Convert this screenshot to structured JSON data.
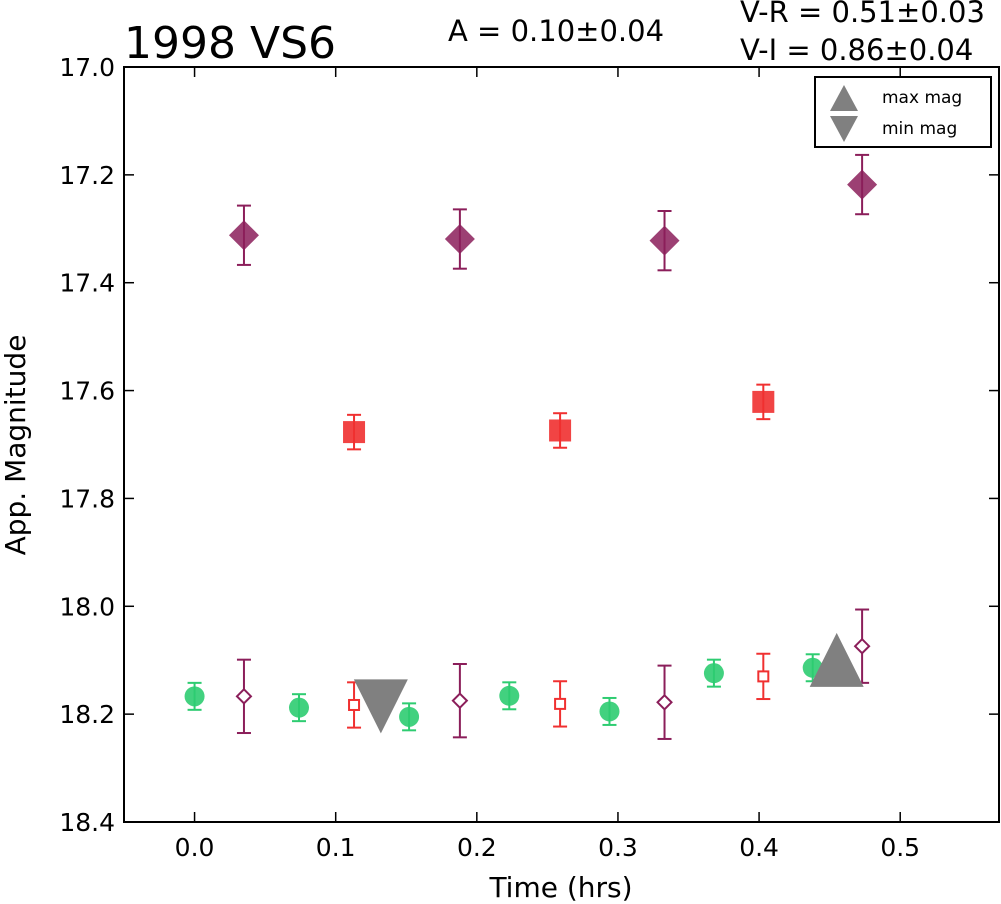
{
  "header": {
    "title": "1998 VS6",
    "amplitude": "A  = 0.10±0.04",
    "vr": "V-R = 0.51±0.03",
    "vi": "V-I  = 0.86±0.04"
  },
  "legend": {
    "max_label": "max mag",
    "min_label": "min mag"
  },
  "chart_data": {
    "type": "scatter",
    "xlabel": "Time (hrs)",
    "ylabel": "App. Magnitude",
    "xlim": [
      -0.05,
      0.57
    ],
    "ylim": [
      18.4,
      17.0
    ],
    "y_inverted": true,
    "xticks": [
      "0.0",
      "0.1",
      "0.2",
      "0.3",
      "0.4",
      "0.5"
    ],
    "yticks": [
      "17.0",
      "17.2",
      "17.4",
      "17.6",
      "17.8",
      "18.0",
      "18.2",
      "18.4"
    ],
    "grid": false,
    "legend_position": "top-right",
    "colors": {
      "green": "#2ecc71",
      "red": "#f03030",
      "purple": "#8b1e5a",
      "gray": "#808080"
    },
    "series": [
      {
        "marker": "circle",
        "color": "#2ecc71",
        "x": [
          0.0,
          0.074,
          0.152,
          0.223,
          0.294,
          0.368,
          0.438
        ],
        "y": [
          18.167,
          18.188,
          18.205,
          18.166,
          18.195,
          18.124,
          18.114
        ],
        "yerr": [
          0.025,
          0.025,
          0.025,
          0.025,
          0.025,
          0.025,
          0.025
        ]
      },
      {
        "marker": "square-open",
        "color": "#f03030",
        "x": [
          0.113,
          0.259,
          0.403
        ],
        "y": [
          18.183,
          18.181,
          18.13
        ],
        "yerr": [
          0.042,
          0.042,
          0.042
        ]
      },
      {
        "marker": "diamond-open",
        "color": "#8b1e5a",
        "x": [
          0.035,
          0.188,
          0.333,
          0.473
        ],
        "y": [
          18.167,
          18.175,
          18.178,
          18.074
        ],
        "yerr": [
          0.068,
          0.068,
          0.068,
          0.068
        ]
      },
      {
        "marker": "square-filled",
        "color": "#f03030",
        "x": [
          0.113,
          0.259,
          0.403
        ],
        "y": [
          17.677,
          17.674,
          17.621
        ],
        "yerr": [
          0.032,
          0.032,
          0.032
        ]
      },
      {
        "marker": "diamond-filled",
        "color": "#8b1e5a",
        "x": [
          0.035,
          0.188,
          0.333,
          0.473
        ],
        "y": [
          17.312,
          17.319,
          17.322,
          17.218
        ],
        "yerr": [
          0.055,
          0.055,
          0.055,
          0.055
        ]
      }
    ],
    "annotations": [
      {
        "kind": "max-mag",
        "marker": "triangle-up",
        "color": "#808080",
        "x": 0.455,
        "y": 18.105
      },
      {
        "kind": "min-mag",
        "marker": "triangle-down",
        "color": "#808080",
        "x": 0.132,
        "y": 18.18
      }
    ]
  }
}
